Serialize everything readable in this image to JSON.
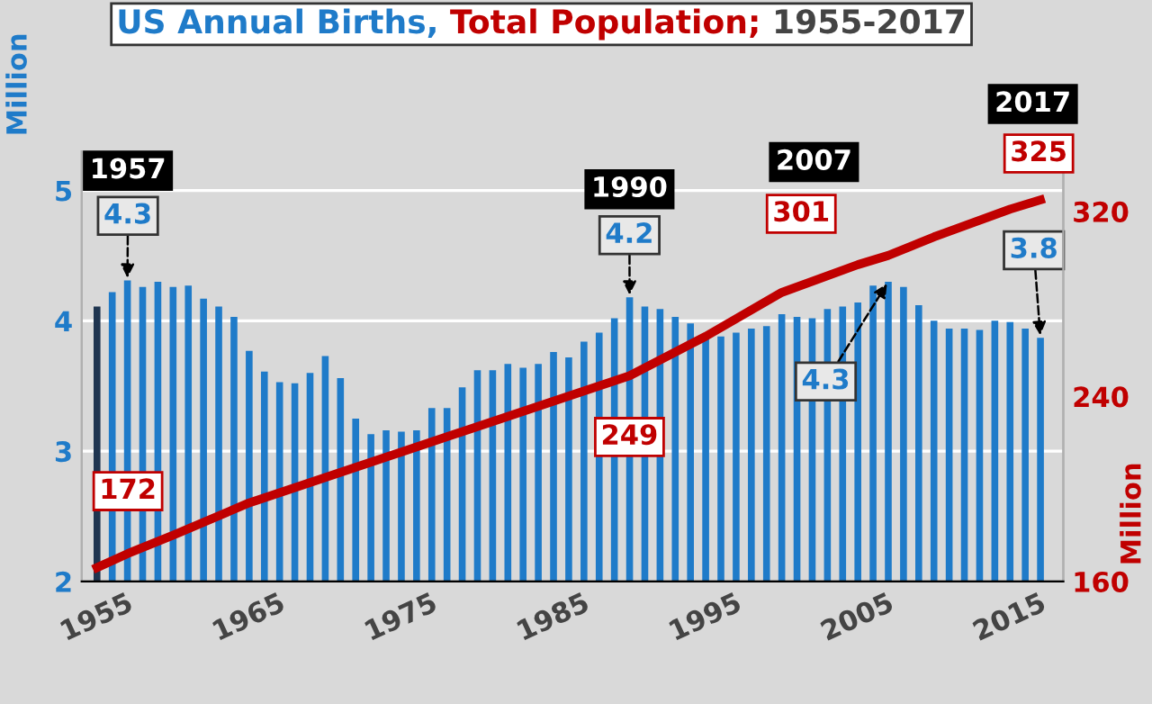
{
  "chart_data": {
    "type": "bar",
    "title": "US Annual Births, Total Population; 1955-2017",
    "ylabel": "Million",
    "y2label": "Million",
    "x": [
      1955,
      1956,
      1957,
      1958,
      1959,
      1960,
      1961,
      1962,
      1963,
      1964,
      1965,
      1966,
      1967,
      1968,
      1969,
      1970,
      1971,
      1972,
      1973,
      1974,
      1975,
      1976,
      1977,
      1978,
      1979,
      1980,
      1981,
      1982,
      1983,
      1984,
      1985,
      1986,
      1987,
      1988,
      1989,
      1990,
      1991,
      1992,
      1993,
      1994,
      1995,
      1996,
      1997,
      1998,
      1999,
      2000,
      2001,
      2002,
      2003,
      2004,
      2005,
      2006,
      2007,
      2008,
      2009,
      2010,
      2011,
      2012,
      2013,
      2014,
      2015,
      2016,
      2017
    ],
    "series": [
      {
        "colors": [
          "#1f3550",
          "#1f7bc9",
          "#1f7bc9",
          "#1f7bc9",
          "#1f7bc9",
          "#1f7bc9",
          "#1f7bc9",
          "#1f7bc9",
          "#1f7bc9",
          "#1f7bc9",
          "#1f7bc9",
          "#1f7bc9",
          "#1f7bc9",
          "#1f7bc9",
          "#1f7bc9",
          "#1f7bc9",
          "#1f7bc9",
          "#1f7bc9",
          "#1f7bc9",
          "#1f7bc9",
          "#1f7bc9",
          "#1f7bc9",
          "#1f7bc9",
          "#1f7bc9",
          "#1f7bc9",
          "#1f7bc9",
          "#1f7bc9",
          "#1f7bc9",
          "#1f7bc9",
          "#1f7bc9",
          "#1f7bc9",
          "#1f7bc9",
          "#1f7bc9",
          "#1f7bc9",
          "#1f7bc9",
          "#1f7bc9",
          "#1f7bc9",
          "#1f7bc9",
          "#1f7bc9",
          "#1f7bc9",
          "#1f7bc9",
          "#1f7bc9",
          "#1f7bc9",
          "#1f7bc9",
          "#1f7bc9",
          "#1f7bc9",
          "#1f7bc9",
          "#1f7bc9",
          "#1f7bc9",
          "#1f7bc9",
          "#1f7bc9",
          "#1f7bc9",
          "#1f7bc9",
          "#1f7bc9",
          "#1f7bc9",
          "#1f7bc9",
          "#1f7bc9",
          "#1f7bc9",
          "#1f7bc9",
          "#1f7bc9",
          "#1f7bc9",
          "#1f7bc9",
          "#1f7bc9"
        ],
        "values": [
          4.11,
          4.22,
          4.31,
          4.26,
          4.3,
          4.26,
          4.27,
          4.17,
          4.11,
          4.03,
          3.77,
          3.61,
          3.53,
          3.52,
          3.6,
          3.73,
          3.56,
          3.25,
          3.13,
          3.16,
          3.15,
          3.16,
          3.33,
          3.33,
          3.49,
          3.62,
          3.62,
          3.67,
          3.64,
          3.67,
          3.76,
          3.72,
          3.84,
          3.91,
          4.02,
          4.18,
          4.11,
          4.09,
          4.03,
          3.98,
          3.88,
          3.88,
          3.91,
          3.94,
          3.96,
          4.05,
          4.03,
          4.02,
          4.09,
          4.11,
          4.14,
          4.27,
          4.3,
          4.26,
          4.12,
          4.0,
          3.94,
          3.94,
          3.93,
          4.0,
          3.99,
          3.94,
          3.87
        ]
      },
      {
        "type": "line",
        "axis": "y2",
        "color": "#c00000",
        "x": [
          1955,
          1957,
          1960,
          1965,
          1970,
          1975,
          1980,
          1985,
          1990,
          1995,
          2000,
          2005,
          2007,
          2010,
          2015,
          2017
        ],
        "values": [
          166,
          172,
          180,
          194,
          205,
          216,
          227,
          238,
          249,
          266,
          285,
          297,
          301,
          309,
          321,
          325
        ]
      }
    ],
    "xlim": [
      1954,
      2018.5
    ],
    "xticks": [
      1955,
      1965,
      1975,
      1985,
      1995,
      2005,
      2015
    ],
    "ylim": [
      2,
      5.3
    ],
    "yticks": [
      2,
      3,
      4,
      5
    ],
    "y2lim": [
      160,
      346
    ],
    "y2ticks": [
      160,
      240,
      320
    ],
    "grid": "y",
    "legend": false,
    "annotations": [
      "1957",
      {
        "text": "4.3",
        "x": 1957,
        "y": 4.31
      },
      "172",
      "1990",
      {
        "text": "4.2",
        "x": 1990,
        "y": 4.18
      },
      "249",
      "2007",
      "301",
      {
        "text": "4.3",
        "x": 2007,
        "y": 4.3
      },
      "2017",
      "325",
      {
        "text": "3.8",
        "x": 2017,
        "y": 3.87
      }
    ]
  }
}
